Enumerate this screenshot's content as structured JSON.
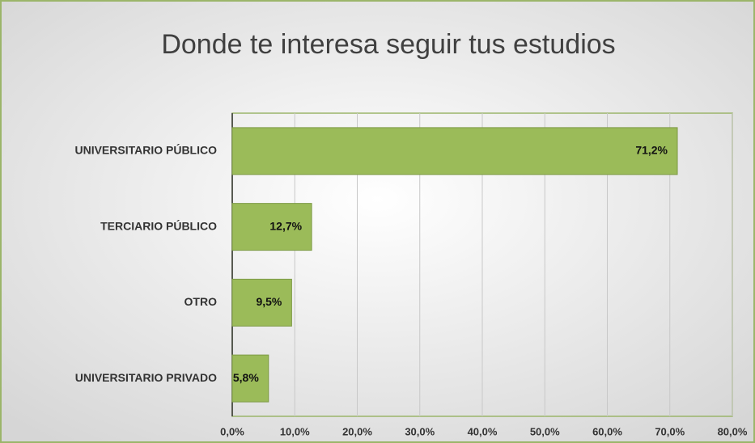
{
  "chart_data": {
    "type": "bar",
    "orientation": "horizontal",
    "title": "Donde te interesa seguir tus estudios",
    "categories": [
      "UNIVERSITARIO PÚBLICO",
      "TERCIARIO PÚBLICO",
      "OTRO",
      "UNIVERSITARIO PRIVADO"
    ],
    "values": [
      71.2,
      12.7,
      9.5,
      5.8
    ],
    "value_labels": [
      "71,2%",
      "12,7%",
      "9,5%",
      "5,8%"
    ],
    "color": "#9bbb59",
    "xlim": [
      0,
      80
    ],
    "xticks": [
      {
        "value": 0,
        "label": "0,0%"
      },
      {
        "value": 10,
        "label": "10,0%"
      },
      {
        "value": 20,
        "label": "20,0%"
      },
      {
        "value": 30,
        "label": "30,0%"
      },
      {
        "value": 40,
        "label": "40,0%"
      },
      {
        "value": 50,
        "label": "50,0%"
      },
      {
        "value": 60,
        "label": "60,0%"
      },
      {
        "value": 70,
        "label": "70,0%"
      },
      {
        "value": 80,
        "label": "80,0%"
      }
    ],
    "grid": true
  }
}
